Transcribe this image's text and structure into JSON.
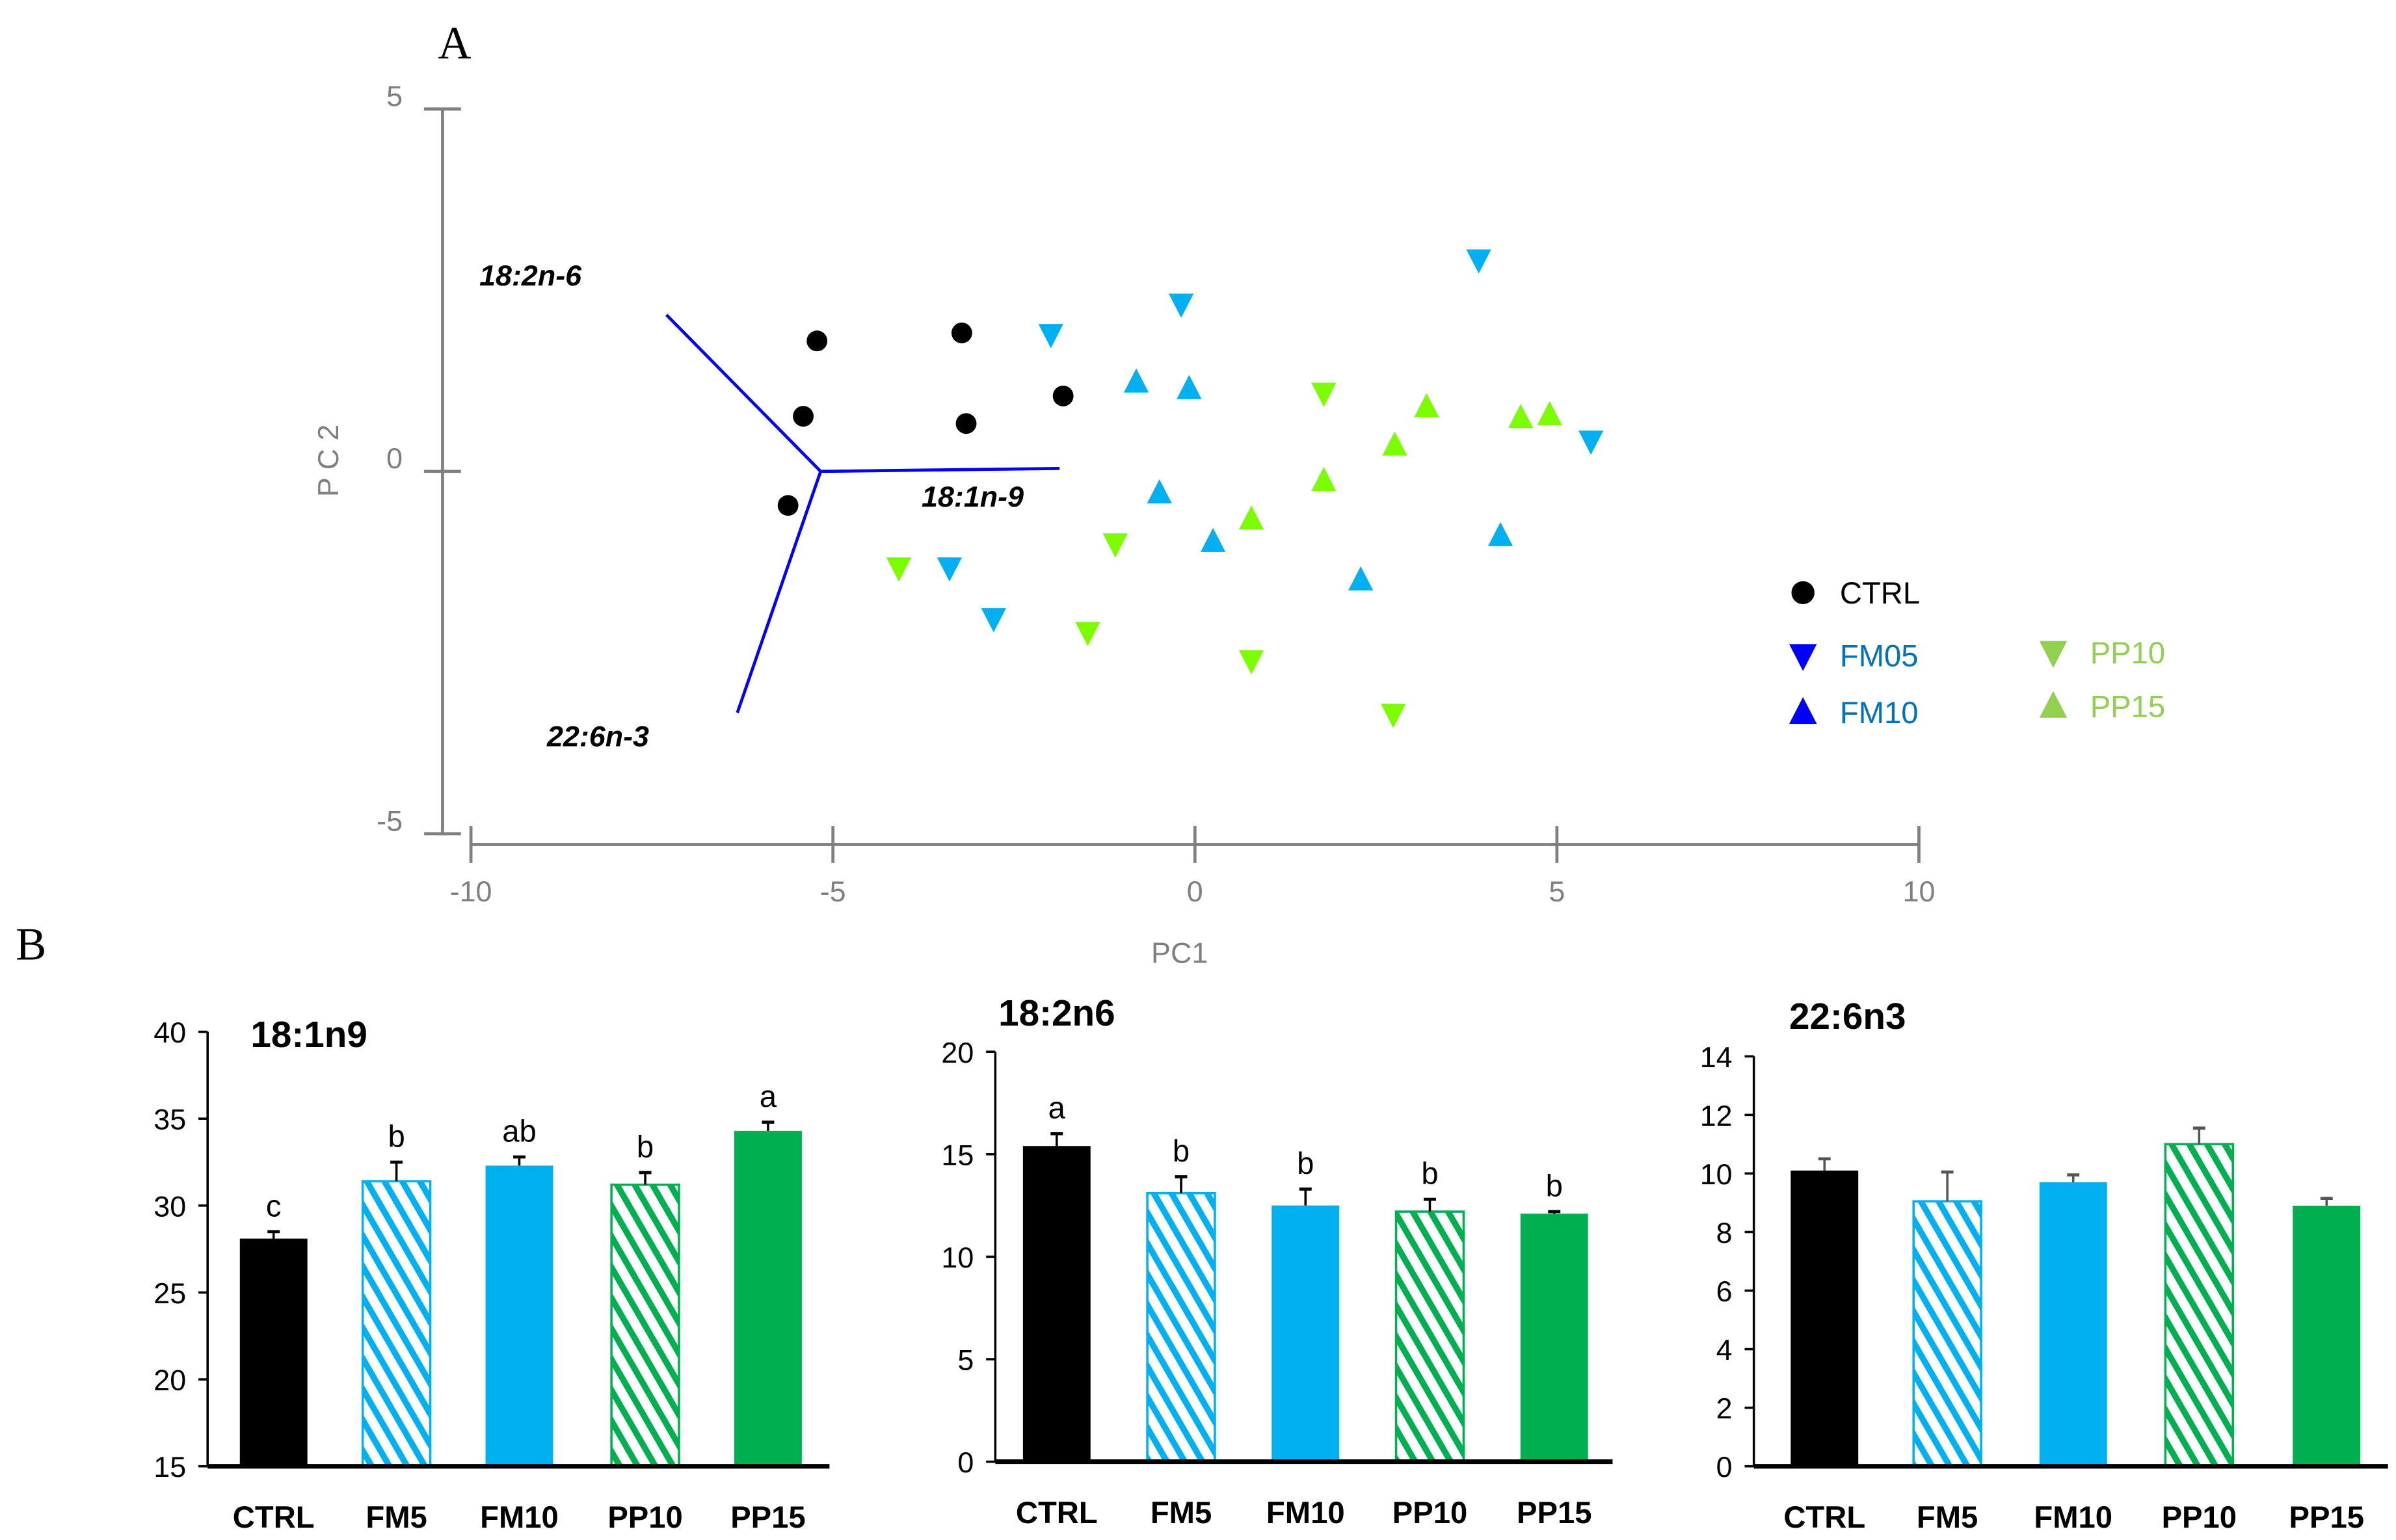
{
  "colors": {
    "ctrl": "#000000",
    "fm_point": "#00B0F0",
    "pp_point": "#7CFC00",
    "legend_fm_marker": "#0000FF",
    "legend_fm_text": "#0070C0",
    "legend_pp": "#92D050",
    "bar_blue": "#00B0F0",
    "bar_green": "#00B050",
    "loading": "#0000FF"
  },
  "chart_data": [
    {
      "type": "scatter",
      "panel_label": "A",
      "xlabel": "PC1",
      "ylabel": "P C 2",
      "xlim": [
        -10,
        10
      ],
      "ylim": [
        -5,
        5
      ],
      "xticks": [
        "-10",
        "-5",
        "0",
        "5",
        "10"
      ],
      "yticks": [
        "5",
        "0",
        "-5"
      ],
      "series": [
        {
          "name": "CTRL",
          "marker": "circle",
          "points": [
            [
              -5.22,
              1.8
            ],
            [
              -3.22,
              1.91
            ],
            [
              -5.41,
              0.76
            ],
            [
              -3.16,
              0.66
            ],
            [
              -1.82,
              1.04
            ],
            [
              -5.62,
              -0.47
            ]
          ]
        },
        {
          "name": "FM05",
          "marker": "triangle-down",
          "points": [
            [
              -1.99,
              1.89
            ],
            [
              -0.19,
              2.31
            ],
            [
              3.92,
              2.92
            ],
            [
              5.47,
              0.42
            ],
            [
              -3.39,
              -1.33
            ],
            [
              -2.78,
              -2.03
            ]
          ]
        },
        {
          "name": "FM10",
          "marker": "triangle-up",
          "points": [
            [
              -0.81,
              1.23
            ],
            [
              -0.08,
              1.14
            ],
            [
              -0.49,
              -0.3
            ],
            [
              0.25,
              -0.97
            ],
            [
              2.29,
              -1.5
            ],
            [
              4.22,
              -0.89
            ]
          ]
        },
        {
          "name": "PP10",
          "marker": "triangle-down",
          "points": [
            [
              1.78,
              1.08
            ],
            [
              -4.09,
              -1.33
            ],
            [
              -1.1,
              -1.0
            ],
            [
              -1.48,
              -2.22
            ],
            [
              0.78,
              -2.61
            ],
            [
              2.74,
              -3.35
            ]
          ]
        },
        {
          "name": "PP15",
          "marker": "triangle-up",
          "points": [
            [
              3.2,
              0.89
            ],
            [
              2.76,
              0.36
            ],
            [
              1.78,
              -0.13
            ],
            [
              0.78,
              -0.66
            ],
            [
              4.5,
              0.74
            ],
            [
              4.9,
              0.78
            ]
          ]
        }
      ],
      "loadings": {
        "origin": [
          -5.17,
          0
        ],
        "vectors": [
          {
            "label": "18:2n-6",
            "end": [
              -7.3,
              2.16
            ]
          },
          {
            "label": "18:1n-9",
            "end": [
              -1.87,
              0.04
            ]
          },
          {
            "label": "22:6n-3",
            "end": [
              -6.32,
              -3.33
            ]
          }
        ]
      },
      "legend": [
        "CTRL",
        "FM05",
        "FM10",
        "PP10",
        "PP15"
      ],
      "legend_position": "bottom-right"
    },
    {
      "type": "bar",
      "panel_label": "B",
      "title": "18:1n9",
      "categories": [
        "CTRL",
        "FM5",
        "FM10",
        "PP10",
        "PP15"
      ],
      "values": [
        28.1,
        31.4,
        32.3,
        31.2,
        34.3
      ],
      "errors": [
        0.4,
        1.1,
        0.5,
        0.7,
        0.5
      ],
      "letters": [
        "c",
        "b",
        "ab",
        "b",
        "a"
      ],
      "ylim": [
        15,
        40
      ],
      "yticks": [
        "15",
        "20",
        "25",
        "30",
        "35",
        "40"
      ]
    },
    {
      "type": "bar",
      "title": "18:2n6",
      "categories": [
        "CTRL",
        "FM5",
        "FM10",
        "PP10",
        "PP15"
      ],
      "values": [
        15.4,
        13.1,
        12.5,
        12.2,
        12.1
      ],
      "errors": [
        0.6,
        0.8,
        0.8,
        0.6,
        0.1
      ],
      "letters": [
        "a",
        "b",
        "b",
        "b",
        "b"
      ],
      "ylim": [
        0,
        20
      ],
      "yticks": [
        "0",
        "5",
        "10",
        "15",
        "20"
      ]
    },
    {
      "type": "bar",
      "title": "22:6n3",
      "categories": [
        "CTRL",
        "FM5",
        "FM10",
        "PP10",
        "PP15"
      ],
      "values": [
        10.1,
        9.05,
        9.7,
        11.0,
        8.9
      ],
      "errors": [
        0.4,
        1.0,
        0.25,
        0.55,
        0.25
      ],
      "letters": [
        "",
        "",
        "",
        "",
        ""
      ],
      "ylim": [
        0,
        14
      ],
      "yticks": [
        "0",
        "2",
        "4",
        "6",
        "8",
        "10",
        "12",
        "14"
      ]
    }
  ]
}
